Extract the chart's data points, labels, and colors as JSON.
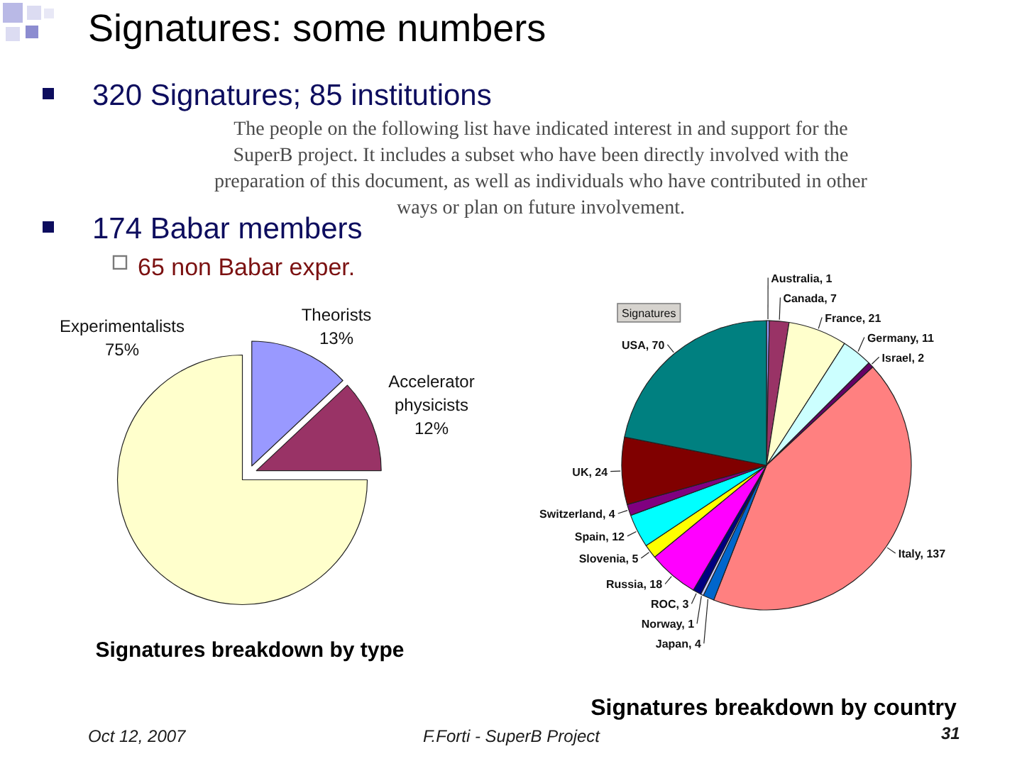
{
  "chart_data": [
    {
      "type": "other",
      "title": "Signatures: some numbers",
      "annotations": [
        "320 Signatures; 85 institutions",
        "The people on the following list have indicated interest in and support for the\nSuperB project. It includes a subset who have been directly involved with the\npreparation of this document, as well as individuals who have contributed in other\nways or plan on future involvement.",
        "174 Babar members",
        "65 non Babar exper.",
        "Oct 12, 2007",
        "F.Forti - SuperB Project",
        "31"
      ]
    },
    {
      "type": "pie",
      "title": "Signatures breakdown by type",
      "categories": [
        "Theorists",
        "Accelerator physicists",
        "Experimentalists"
      ],
      "values": [
        13,
        12,
        75
      ],
      "colors": [
        "#9999ff",
        "#993366",
        "#ffffcc"
      ],
      "value_labels": [
        "13%",
        "12%",
        "75%"
      ]
    },
    {
      "type": "pie",
      "title": "Signatures breakdown by country",
      "values": [
        1,
        7,
        21,
        11,
        2,
        137,
        4,
        1,
        3,
        18,
        5,
        12,
        4,
        24,
        70
      ],
      "colors": [
        "#9999ff",
        "#993366",
        "#ffffcc",
        "#ccffff",
        "#660066",
        "#ff8080",
        "#0066cc",
        "#ccccff",
        "#000080",
        "#ff00ff",
        "#ffff00",
        "#00ffff",
        "#800080",
        "#800000",
        "#008080"
      ],
      "value_labels": [
        "Australia, 1",
        "Canada, 7",
        "France, 21",
        "Germany, 11",
        "Israel, 2",
        "Italy, 137",
        "Japan, 4",
        "Norway, 1",
        "ROC, 3",
        "Russia, 18",
        "Slovenia, 5",
        "Spain, 12",
        "Switzerland, 4",
        "UK, 24",
        "USA, 70"
      ],
      "annotations": [
        "Signatures"
      ]
    }
  ]
}
